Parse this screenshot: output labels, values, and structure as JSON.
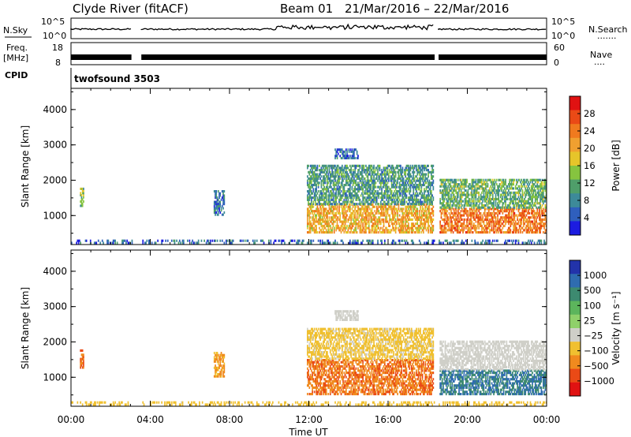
{
  "header": {
    "title": "Clyde River (fitACF)",
    "beam": "Beam 01",
    "date_range": "21/Mar/2016 – 22/Mar/2016"
  },
  "panels": {
    "noise": {
      "left_label": "N.Sky",
      "right_label": "N.Search",
      "right_dots": ".......",
      "left_ticks": [
        "10^5",
        "10^0"
      ],
      "right_ticks": [
        "10^5",
        "10^0"
      ]
    },
    "freq": {
      "left_label_1": "Freq.",
      "left_label_2": "[MHz]",
      "right_label": "Nave",
      "right_dots": "....",
      "left_ticks": [
        "18",
        "8"
      ],
      "right_ticks": [
        "60",
        "0"
      ]
    },
    "cpid": {
      "label": "CPID",
      "value": "twofsound 3503"
    }
  },
  "chart_data": [
    {
      "type": "heatmap",
      "name": "power",
      "ylabel": "Slant Range [km]",
      "xlabel": "Time UT",
      "x_range_hours": [
        0,
        24
      ],
      "ylim": [
        180,
        4600
      ],
      "y_ticks": [
        1000,
        2000,
        3000,
        4000
      ],
      "x_ticks": [
        "00:00",
        "04:00",
        "08:00",
        "12:00",
        "16:00",
        "20:00",
        "00:00"
      ],
      "colorbar": {
        "label": "Power [dB]",
        "range": [
          0,
          32
        ],
        "ticks": [
          4,
          8,
          12,
          16,
          20,
          24,
          28
        ],
        "colors": [
          "#1c1ce0",
          "#2f5fbd",
          "#3d8a99",
          "#4f9e6a",
          "#86c43f",
          "#e6c52a",
          "#f0a030",
          "#f07a1e",
          "#ea4a16",
          "#e01212"
        ]
      },
      "data_gaps_hours": [
        [
          3.05,
          3.55
        ],
        [
          18.35,
          18.55
        ]
      ],
      "regions": [
        {
          "t": [
            0.45,
            0.65
          ],
          "r": [
            1250,
            1750
          ],
          "level": 14
        },
        {
          "t": [
            7.2,
            7.7
          ],
          "r": [
            1000,
            1700
          ],
          "level": 6
        },
        {
          "t": [
            11.9,
            18.3
          ],
          "r": [
            500,
            1300
          ],
          "level": 20
        },
        {
          "t": [
            11.9,
            18.3
          ],
          "r": [
            1300,
            2400
          ],
          "level": 10
        },
        {
          "t": [
            13.3,
            14.5
          ],
          "r": [
            2600,
            2900
          ],
          "level": 5
        },
        {
          "t": [
            18.6,
            24
          ],
          "r": [
            500,
            1200
          ],
          "level": 24
        },
        {
          "t": [
            18.6,
            24
          ],
          "r": [
            1200,
            2000
          ],
          "level": 12
        },
        {
          "t": [
            0,
            24
          ],
          "r": [
            200,
            300
          ],
          "level": 6
        }
      ]
    },
    {
      "type": "heatmap",
      "name": "velocity",
      "ylabel": "Slant Range [km]",
      "xlabel": "Time UT",
      "x_range_hours": [
        0,
        24
      ],
      "ylim": [
        180,
        4600
      ],
      "y_ticks": [
        1000,
        2000,
        3000,
        4000
      ],
      "x_ticks": [
        "00:00",
        "04:00",
        "08:00",
        "12:00",
        "16:00",
        "20:00",
        "00:00"
      ],
      "colorbar": {
        "label": "Velocity [m s⁻¹]",
        "ticks": [
          "1000",
          "500",
          "100",
          "25",
          "−25",
          "−100",
          "−500",
          "−1000"
        ],
        "colors": [
          "#2233aa",
          "#2f6cb0",
          "#3d8a70",
          "#5cb55c",
          "#8fd06a",
          "#cfcfc8",
          "#f0c030",
          "#f08a1e",
          "#ea4a16",
          "#e01212"
        ]
      },
      "data_gaps_hours": [
        [
          3.05,
          3.55
        ],
        [
          18.35,
          18.55
        ]
      ],
      "regions": [
        {
          "t": [
            0.45,
            0.65
          ],
          "r": [
            1250,
            1750
          ],
          "level": -300
        },
        {
          "t": [
            7.2,
            7.7
          ],
          "r": [
            1000,
            1700
          ],
          "level": -120
        },
        {
          "t": [
            11.9,
            18.3
          ],
          "r": [
            500,
            1500
          ],
          "level": -250
        },
        {
          "t": [
            11.9,
            18.3
          ],
          "r": [
            1500,
            2400
          ],
          "level": -40
        },
        {
          "t": [
            13.3,
            14.5
          ],
          "r": [
            2600,
            2900
          ],
          "level": 5
        },
        {
          "t": [
            18.6,
            24
          ],
          "r": [
            500,
            1200
          ],
          "level": 300
        },
        {
          "t": [
            18.6,
            24
          ],
          "r": [
            1200,
            2000
          ],
          "level": 10
        },
        {
          "t": [
            0,
            24
          ],
          "r": [
            200,
            300
          ],
          "level": -60
        }
      ]
    }
  ]
}
